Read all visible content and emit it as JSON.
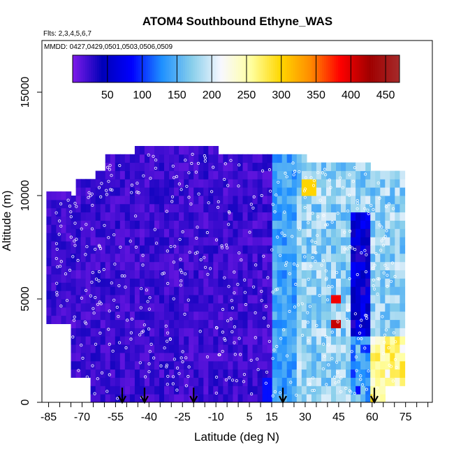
{
  "chart_data": {
    "type": "heatmap",
    "title": "ATOM4 Southbound Ethyne_WAS",
    "flights_label": "Flts: 2,3,4,5,6,7",
    "dates_label": "MMDD: 0427,0429,0501,0503,0506,0509",
    "xlabel": "Latitude (deg N)",
    "ylabel": "Altitude (m)",
    "xlim": [
      -88,
      87
    ],
    "ylim": [
      0,
      17500
    ],
    "x_ticks": [
      -85,
      -70,
      -55,
      -40,
      -25,
      -10,
      5,
      15,
      30,
      45,
      60,
      75
    ],
    "x_tick_labels": [
      "-85",
      "-70",
      "-55",
      "-40",
      "-25",
      "-10",
      "5",
      "15",
      "30",
      "45",
      "60",
      "75"
    ],
    "y_ticks": [
      0,
      5000,
      10000,
      15000
    ],
    "y_tick_labels": [
      "0",
      "5000",
      "10000",
      "15000"
    ],
    "colorbar": {
      "range": [
        0,
        470
      ],
      "ticks": [
        50,
        100,
        150,
        200,
        250,
        300,
        350,
        400,
        450
      ],
      "tick_labels": [
        "50",
        "100",
        "150",
        "200",
        "250",
        "300",
        "350",
        "400",
        "450"
      ],
      "colors": [
        "#7f1bea",
        "#0000b8",
        "#0000ff",
        "#1e90ff",
        "#87ceeb",
        "#f8f8ff",
        "#ffffa0",
        "#ffd700",
        "#ff8c00",
        "#ff0000",
        "#a00000",
        "#a52a2a"
      ]
    },
    "arrows_lat": [
      -52,
      -42,
      -20,
      20,
      61
    ],
    "field_description_values": {
      "south_of_15N_typical": 20,
      "tropics_15_to_25N_typical": 150,
      "north_of_25N_typical": 180,
      "peak_near_43N_3500m": 410,
      "peak_near_43N_4800m": 390
    }
  }
}
